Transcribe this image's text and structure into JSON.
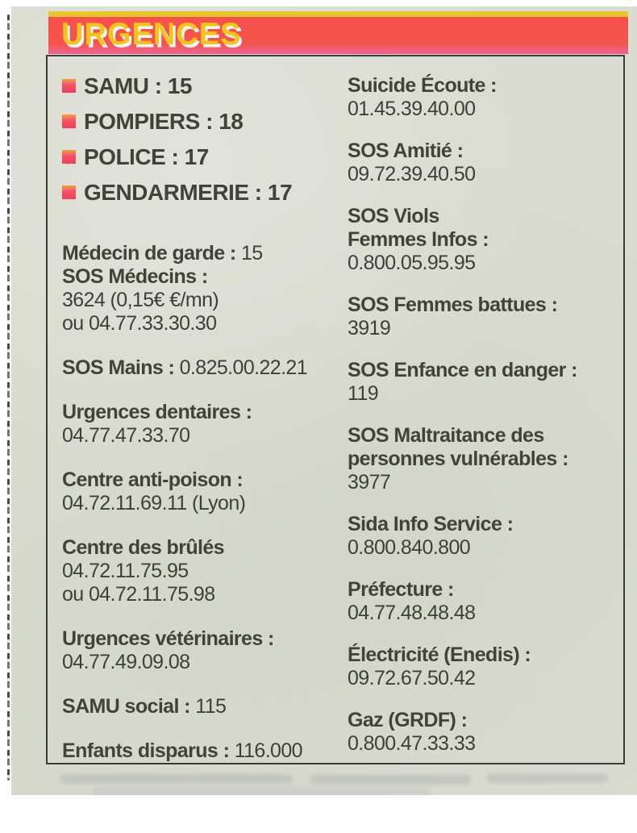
{
  "header": {
    "title": "URGENCES"
  },
  "colors": {
    "bar_red": "#f5544d",
    "bar_pink_edge": "#ee6190",
    "accent_yellow_line": "#e9c52e",
    "title_yellow": "#f4c31c",
    "paper": "#dadcd1",
    "text": "#3f4437",
    "bullet_red": "#ef4058",
    "bullet_orange_top": "#f0a03e",
    "box_border": "#3a3d31"
  },
  "icons": {
    "bullet": "red-square-bullet-icon"
  },
  "emergency_list": {
    "items": [
      "SAMU : 15",
      "POMPIERS : 18",
      "POLICE : 17",
      "GENDARMERIE : 17"
    ]
  },
  "left_column": {
    "entries": [
      {
        "lines": [
          {
            "b": "Médecin de garde :",
            "r": " 15"
          },
          {
            "b": "SOS Médecins :",
            "r": ""
          },
          {
            "b": "",
            "r": "3624 (0,15€ €/mn)"
          },
          {
            "b": "",
            "r": "ou 04.77.33.30.30"
          }
        ]
      },
      {
        "lines": [
          {
            "b": "SOS Mains :",
            "r": " 0.825.00.22.21"
          }
        ]
      },
      {
        "lines": [
          {
            "b": "Urgences dentaires :",
            "r": ""
          },
          {
            "b": "",
            "r": "04.77.47.33.70"
          }
        ]
      },
      {
        "lines": [
          {
            "b": "Centre anti-poison :",
            "r": ""
          },
          {
            "b": "",
            "r": "04.72.11.69.11 (Lyon)"
          }
        ]
      },
      {
        "lines": [
          {
            "b": "Centre des brûlés",
            "r": ""
          },
          {
            "b": "",
            "r": "04.72.11.75.95"
          },
          {
            "b": "",
            "r": "ou 04.72.11.75.98"
          }
        ]
      },
      {
        "lines": [
          {
            "b": "Urgences vétérinaires :",
            "r": ""
          },
          {
            "b": "",
            "r": "04.77.49.09.08"
          }
        ]
      },
      {
        "lines": [
          {
            "b": "SAMU social :",
            "r": " 115"
          }
        ]
      },
      {
        "lines": [
          {
            "b": "Enfants disparus :",
            "r": " 116.000"
          }
        ]
      }
    ]
  },
  "right_column": {
    "entries": [
      {
        "lines": [
          {
            "b": "Suicide Écoute :",
            "r": ""
          },
          {
            "b": "",
            "r": "01.45.39.40.00"
          }
        ]
      },
      {
        "lines": [
          {
            "b": "SOS Amitié :",
            "r": ""
          },
          {
            "b": "",
            "r": "09.72.39.40.50"
          }
        ]
      },
      {
        "lines": [
          {
            "b": "SOS Viols",
            "r": ""
          },
          {
            "b": "Femmes Infos :",
            "r": ""
          },
          {
            "b": "",
            "r": "0.800.05.95.95"
          }
        ]
      },
      {
        "lines": [
          {
            "b": "SOS Femmes battues :",
            "r": ""
          },
          {
            "b": "",
            "r": "3919"
          }
        ]
      },
      {
        "lines": [
          {
            "b": "SOS Enfance en danger :",
            "r": ""
          },
          {
            "b": "",
            "r": "119"
          }
        ]
      },
      {
        "lines": [
          {
            "b": "SOS Maltraitance des",
            "r": ""
          },
          {
            "b": "personnes vulnérables :",
            "r": ""
          },
          {
            "b": "",
            "r": "3977"
          }
        ]
      },
      {
        "lines": [
          {
            "b": "Sida Info Service :",
            "r": ""
          },
          {
            "b": "",
            "r": "0.800.840.800"
          }
        ]
      },
      {
        "lines": [
          {
            "b": "Préfecture :",
            "r": ""
          },
          {
            "b": "",
            "r": "04.77.48.48.48"
          }
        ]
      },
      {
        "lines": [
          {
            "b": "Électricité (Enedis) :",
            "r": ""
          },
          {
            "b": "",
            "r": "09.72.67.50.42"
          }
        ]
      },
      {
        "lines": [
          {
            "b": "Gaz (GRDF) :",
            "r": ""
          },
          {
            "b": "",
            "r": "0.800.47.33.33"
          }
        ]
      }
    ]
  }
}
